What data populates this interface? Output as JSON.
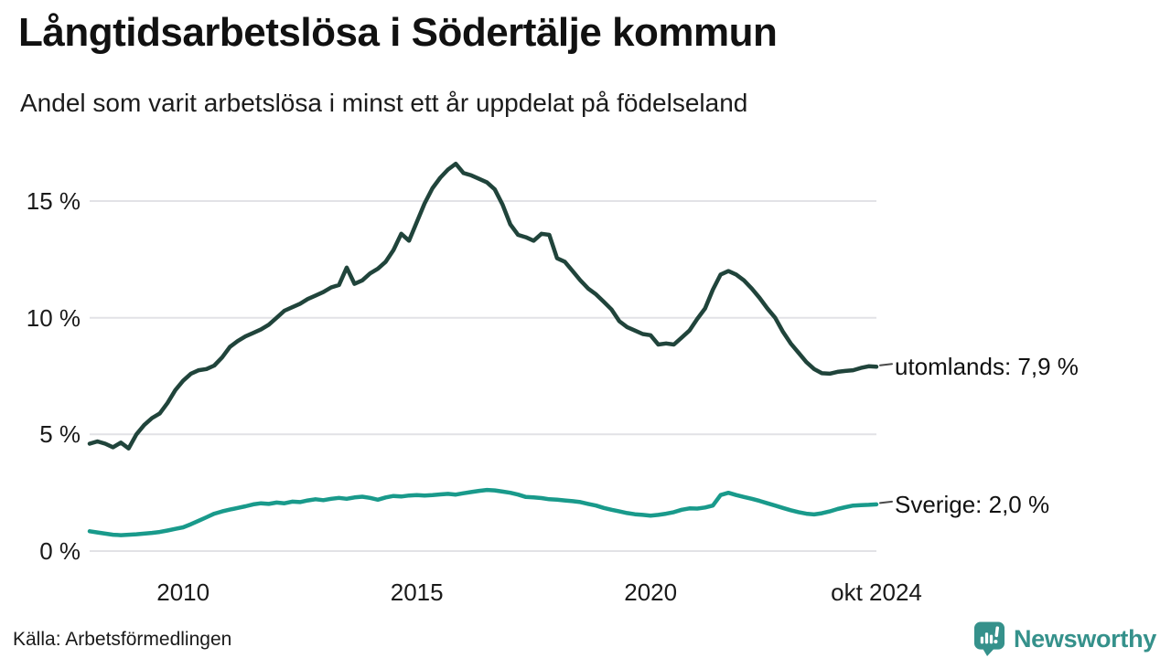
{
  "header": {
    "title": "Långtidsarbetslösa i Södertälje kommun",
    "subtitle": "Andel som varit arbetslösa i minst ett år uppdelat på födelseland"
  },
  "footer": {
    "source": "Källa: Arbetsförmedlingen",
    "logo_text": "Newsworthy"
  },
  "colors": {
    "utomlands_line": "#20443b",
    "sverige_line": "#199a8b",
    "grid": "#e2e2e6",
    "connector": "#4a4a4a",
    "text": "#111111",
    "logo": "#35918b",
    "background": "#ffffff"
  },
  "chart_data": {
    "type": "line",
    "title": "Långtidsarbetslösa i Södertälje kommun",
    "subtitle": "Andel som varit arbetslösa i minst ett år uppdelat på födelseland",
    "unit": "percent",
    "x_start": 2008.0,
    "x_end": 2024.83,
    "x_step_months": 2,
    "ylim": [
      0,
      17
    ],
    "grid": true,
    "legend_position": "right-of-line-ends",
    "y_ticks": [
      {
        "label": "15 %",
        "value": 15
      },
      {
        "label": "10 %",
        "value": 10
      },
      {
        "label": "5 %",
        "value": 5
      },
      {
        "label": "0 %",
        "value": 0
      }
    ],
    "x_ticks": [
      {
        "label": "2010",
        "year": 2010
      },
      {
        "label": "2015",
        "year": 2015
      },
      {
        "label": "2020",
        "year": 2020
      },
      {
        "label": "okt 2024",
        "year": 2024.83
      }
    ],
    "series": [
      {
        "name": "utomlands",
        "label": "utomlands: 7,9 %",
        "end_value": "7,9 %",
        "color": "#20443b",
        "values": [
          4.6,
          4.7,
          4.6,
          4.45,
          4.65,
          4.4,
          5.0,
          5.4,
          5.7,
          5.9,
          6.35,
          6.9,
          7.3,
          7.6,
          7.75,
          7.8,
          7.95,
          8.3,
          8.75,
          9.0,
          9.2,
          9.35,
          9.5,
          9.7,
          10.0,
          10.3,
          10.45,
          10.6,
          10.8,
          10.95,
          11.1,
          11.3,
          11.4,
          12.15,
          11.45,
          11.6,
          11.9,
          12.1,
          12.4,
          12.9,
          13.6,
          13.3,
          14.1,
          14.9,
          15.55,
          16.0,
          16.35,
          16.6,
          16.2,
          16.1,
          15.95,
          15.8,
          15.5,
          14.85,
          14.0,
          13.55,
          13.45,
          13.3,
          13.6,
          13.55,
          12.55,
          12.4,
          12.0,
          11.6,
          11.25,
          11.0,
          10.68,
          10.35,
          9.85,
          9.6,
          9.45,
          9.3,
          9.25,
          8.85,
          8.9,
          8.85,
          9.15,
          9.45,
          9.95,
          10.4,
          11.2,
          11.85,
          12.0,
          11.85,
          11.6,
          11.25,
          10.85,
          10.4,
          10.0,
          9.4,
          8.9,
          8.5,
          8.1,
          7.8,
          7.62,
          7.6,
          7.68,
          7.72,
          7.75,
          7.85,
          7.92,
          7.9
        ]
      },
      {
        "name": "Sverige",
        "label": "Sverige: 2,0 %",
        "end_value": "2,0 %",
        "color": "#199a8b",
        "values": [
          0.85,
          0.8,
          0.75,
          0.7,
          0.68,
          0.7,
          0.72,
          0.75,
          0.78,
          0.82,
          0.88,
          0.95,
          1.02,
          1.15,
          1.3,
          1.45,
          1.6,
          1.7,
          1.78,
          1.85,
          1.92,
          2.0,
          2.05,
          2.02,
          2.08,
          2.05,
          2.12,
          2.1,
          2.17,
          2.22,
          2.18,
          2.24,
          2.28,
          2.24,
          2.3,
          2.33,
          2.28,
          2.2,
          2.3,
          2.36,
          2.34,
          2.38,
          2.4,
          2.38,
          2.4,
          2.43,
          2.45,
          2.42,
          2.48,
          2.53,
          2.58,
          2.62,
          2.6,
          2.55,
          2.5,
          2.42,
          2.32,
          2.3,
          2.27,
          2.22,
          2.2,
          2.17,
          2.14,
          2.1,
          2.02,
          1.95,
          1.85,
          1.77,
          1.7,
          1.63,
          1.58,
          1.55,
          1.52,
          1.55,
          1.6,
          1.67,
          1.77,
          1.83,
          1.82,
          1.87,
          1.95,
          2.4,
          2.5,
          2.4,
          2.32,
          2.24,
          2.15,
          2.05,
          1.95,
          1.85,
          1.75,
          1.67,
          1.6,
          1.57,
          1.62,
          1.7,
          1.8,
          1.88,
          1.95,
          1.97,
          1.98,
          2.0
        ]
      }
    ]
  }
}
